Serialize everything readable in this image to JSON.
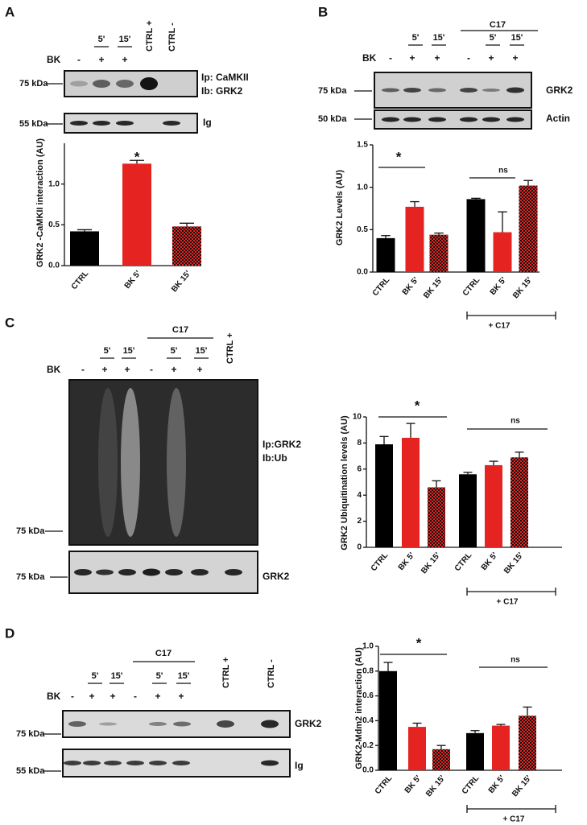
{
  "blots": [
    {
      "letter": "A",
      "treatment": "BK",
      "signs": [
        "-",
        "+",
        "+"
      ],
      "times": [
        "5'",
        "15'"
      ],
      "controls": [
        "CTRL +",
        "CTRL -"
      ],
      "markers": [
        "75 kDa",
        "55 kDa"
      ],
      "probes": [
        "Ip: CaMKII",
        "Ib: GRK2",
        "Ig"
      ]
    },
    {
      "letter": "B",
      "treatment": "BK",
      "signs": [
        "-",
        "+",
        "+",
        "-",
        "+",
        "+"
      ],
      "times": [
        "5'",
        "15'",
        "5'",
        "15'"
      ],
      "group": "C17",
      "markers": [
        "75 kDa",
        "50 kDa"
      ],
      "probes": [
        "GRK2",
        "Actin"
      ]
    },
    {
      "letter": "C",
      "treatment": "BK",
      "signs": [
        "-",
        "+",
        "+",
        "-",
        "+",
        "+"
      ],
      "times": [
        "5'",
        "15'",
        "5'",
        "15'"
      ],
      "group": "C17",
      "controls": [
        "CTRL +"
      ],
      "markers": [
        "75 kDa",
        "75 kDa"
      ],
      "probes": [
        "Ip:GRK2",
        "Ib:Ub",
        "GRK2"
      ]
    },
    {
      "letter": "D",
      "treatment": "BK",
      "signs": [
        "-",
        "+",
        "+",
        "-",
        "+",
        "+"
      ],
      "times": [
        "5'",
        "15'",
        "5'",
        "15'"
      ],
      "group": "C17",
      "controls": [
        "CTRL +",
        "CTRL -"
      ],
      "markers": [
        "75 kDa",
        "55 kDa"
      ],
      "probes": [
        "GRK2",
        "Ig"
      ]
    }
  ],
  "chart_data": [
    {
      "type": "bar",
      "y_label": "GRK2 -CaMKII interaction (AU)",
      "categories": [
        "CTRL",
        "BK 5'",
        "BK 15'"
      ],
      "values": [
        0.42,
        1.25,
        0.48
      ],
      "errors": [
        0.02,
        0.04,
        0.04
      ],
      "colors": [
        "#000000",
        "#e52421",
        "#e52421"
      ],
      "fills": [
        "solid",
        "solid",
        "checkered"
      ],
      "ylim": [
        0,
        1.5
      ],
      "yticks": [
        {
          "value": 0,
          "label": "0.0"
        },
        {
          "value": 0.5,
          "label": "0.5"
        },
        {
          "value": 1,
          "label": "1.0"
        }
      ],
      "annotations": [
        "*"
      ]
    },
    {
      "type": "bar",
      "y_label": "GRK2 Levels (AU)",
      "categories": [
        "CTRL",
        "BK 5'",
        "BK 15'",
        "CTRL",
        "BK 5'",
        "BK 15'"
      ],
      "values": [
        0.4,
        0.77,
        0.44,
        0.86,
        0.47,
        1.02
      ],
      "errors": [
        0.03,
        0.06,
        0.02,
        0.01,
        0.24,
        0.06
      ],
      "colors": [
        "#000000",
        "#e52421",
        "#e52421",
        "#000000",
        "#e52421",
        "#e52421"
      ],
      "fills": [
        "solid",
        "solid",
        "checkered",
        "solid",
        "solid",
        "checkered"
      ],
      "ylim": [
        0,
        1.5
      ],
      "yticks": [
        {
          "value": 0,
          "label": "0.0"
        },
        {
          "value": 0.5,
          "label": "0.5"
        },
        {
          "value": 1,
          "label": "1.0"
        },
        {
          "value": 1.5,
          "label": "1.5"
        }
      ],
      "annotations": [
        "*",
        "ns"
      ],
      "group_label": "+ C17"
    },
    {
      "type": "bar",
      "y_label": "GRK2 Ubiquitination levels (AU)",
      "categories": [
        "CTRL",
        "BK 5'",
        "BK 15'",
        "CTRL",
        "BK 5'",
        "BK 15'"
      ],
      "values": [
        7.9,
        8.4,
        4.6,
        5.6,
        6.3,
        6.9
      ],
      "errors": [
        0.6,
        1.1,
        0.5,
        0.15,
        0.3,
        0.4
      ],
      "colors": [
        "#000000",
        "#e52421",
        "#e52421",
        "#000000",
        "#e52421",
        "#e52421"
      ],
      "fills": [
        "solid",
        "solid",
        "checkered",
        "solid",
        "solid",
        "checkered"
      ],
      "ylim": [
        0,
        10
      ],
      "yticks": [
        0,
        2,
        4,
        6,
        8,
        10
      ],
      "annotations": [
        "*",
        "ns"
      ],
      "group_label": "+ C17"
    },
    {
      "type": "bar",
      "y_label": "GRK2-Mdm2 interaction (AU)",
      "categories": [
        "CTRL",
        "BK 5'",
        "BK 15'",
        "CTRL",
        "BK 5'",
        "BK 15'"
      ],
      "values": [
        0.8,
        0.35,
        0.17,
        0.3,
        0.36,
        0.44
      ],
      "errors": [
        0.07,
        0.03,
        0.03,
        0.02,
        0.01,
        0.07
      ],
      "colors": [
        "#000000",
        "#e52421",
        "#e52421",
        "#000000",
        "#e52421",
        "#e52421"
      ],
      "fills": [
        "solid",
        "solid",
        "checkered",
        "solid",
        "solid",
        "checkered"
      ],
      "ylim": [
        0,
        1
      ],
      "yticks": [
        {
          "value": 0,
          "label": "0.0"
        },
        {
          "value": 0.2,
          "label": "0.2"
        },
        {
          "value": 0.4,
          "label": "0.4"
        },
        {
          "value": 0.6,
          "label": "0.6"
        },
        {
          "value": 0.8,
          "label": "0.8"
        },
        {
          "value": 1,
          "label": "1.0"
        }
      ],
      "annotations": [
        "*",
        "ns"
      ],
      "group_label": "+ C17"
    }
  ]
}
